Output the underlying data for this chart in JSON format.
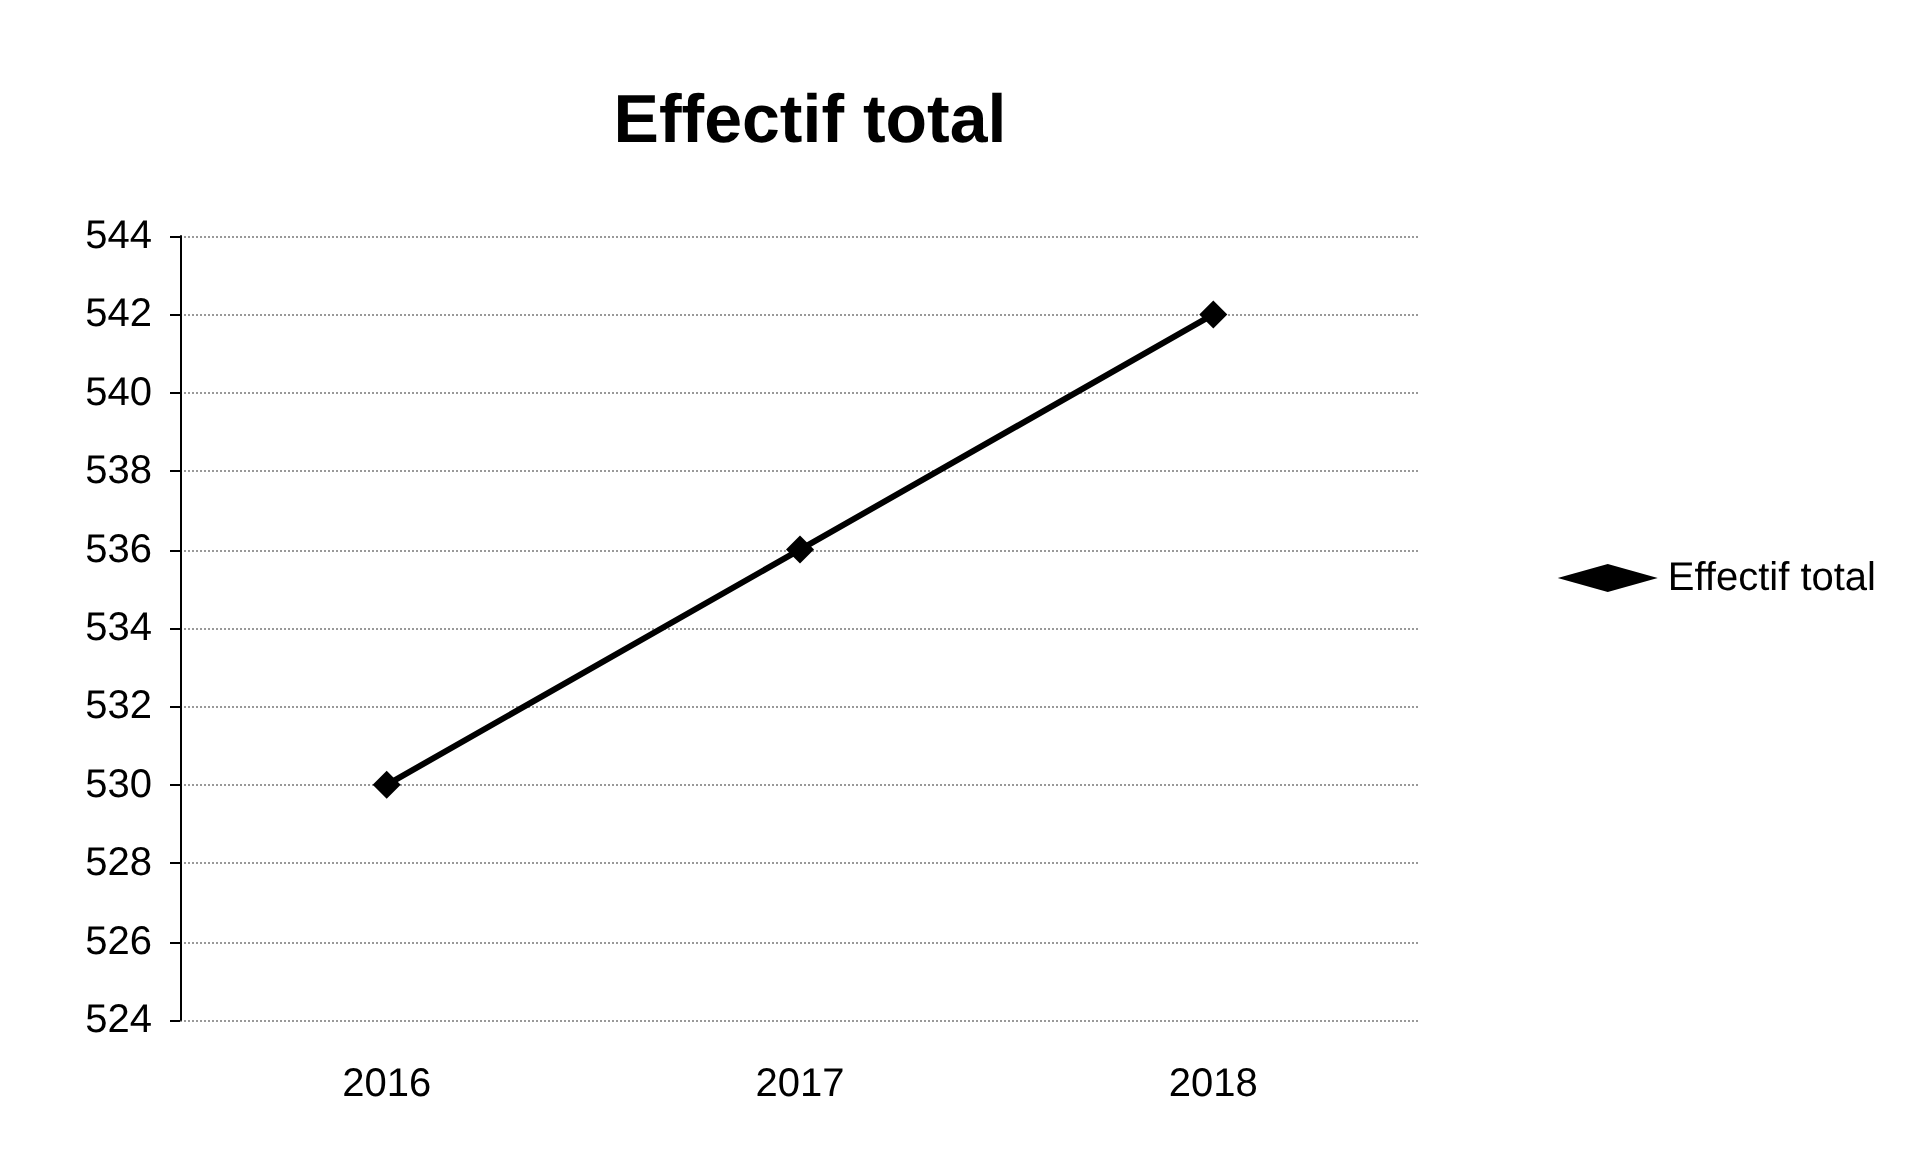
{
  "chart_data": {
    "type": "line",
    "title": "Effectif total",
    "categories": [
      "2016",
      "2017",
      "2018"
    ],
    "series": [
      {
        "name": "Effectif total",
        "color": "#000000",
        "values": [
          530,
          536,
          542
        ]
      }
    ],
    "ylim": [
      524,
      544
    ],
    "yticks": [
      524,
      526,
      528,
      530,
      532,
      534,
      536,
      538,
      540,
      542,
      544
    ],
    "grid": "y",
    "legend": "right",
    "marker": "diamond",
    "line_style": "solid"
  }
}
